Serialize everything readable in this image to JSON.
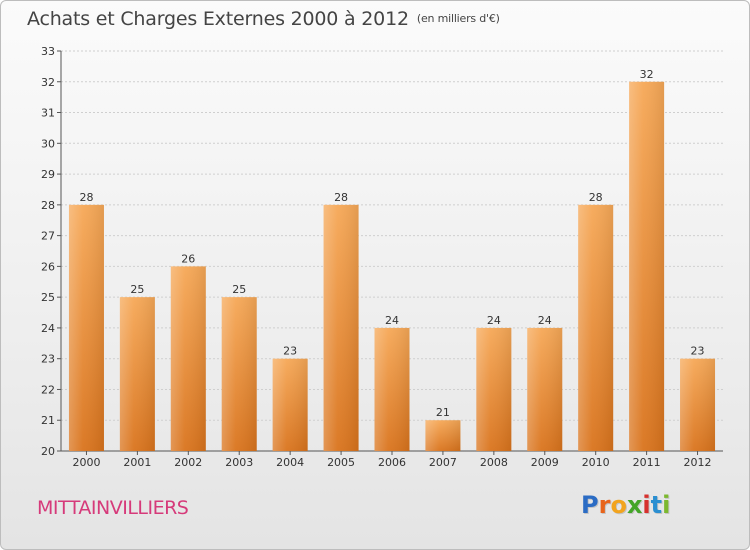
{
  "title": "Achats et Charges Externes 2000 à 2012",
  "subtitle": "(en milliers d'€)",
  "place_name": "MITTAINVILLIERS",
  "logo": {
    "letters": [
      "P",
      "r",
      "o",
      "x",
      "i",
      "t",
      "i"
    ],
    "colors": [
      "#2b6cc4",
      "#e8641b",
      "#f2a41e",
      "#43a528",
      "#d6312e",
      "#2b8fd1",
      "#7cb82f"
    ]
  },
  "colors": {
    "bar_top": "#f6a857",
    "bar_bottom": "#d9731c",
    "grid": "#cfcfcf"
  },
  "chart_data": {
    "type": "bar",
    "categories": [
      "2000",
      "2001",
      "2002",
      "2003",
      "2004",
      "2005",
      "2006",
      "2007",
      "2008",
      "2009",
      "2010",
      "2011",
      "2012"
    ],
    "values": [
      28,
      25,
      26,
      25,
      23,
      28,
      24,
      21,
      24,
      24,
      28,
      32,
      23
    ],
    "title": "Achats et Charges Externes 2000 à 2012",
    "ylabel": "",
    "xlabel": "",
    "ylim": [
      20,
      33
    ],
    "yticks": [
      20,
      21,
      22,
      23,
      24,
      25,
      26,
      27,
      28,
      29,
      30,
      31,
      32,
      33
    ],
    "grid": true,
    "data_labels": true
  }
}
